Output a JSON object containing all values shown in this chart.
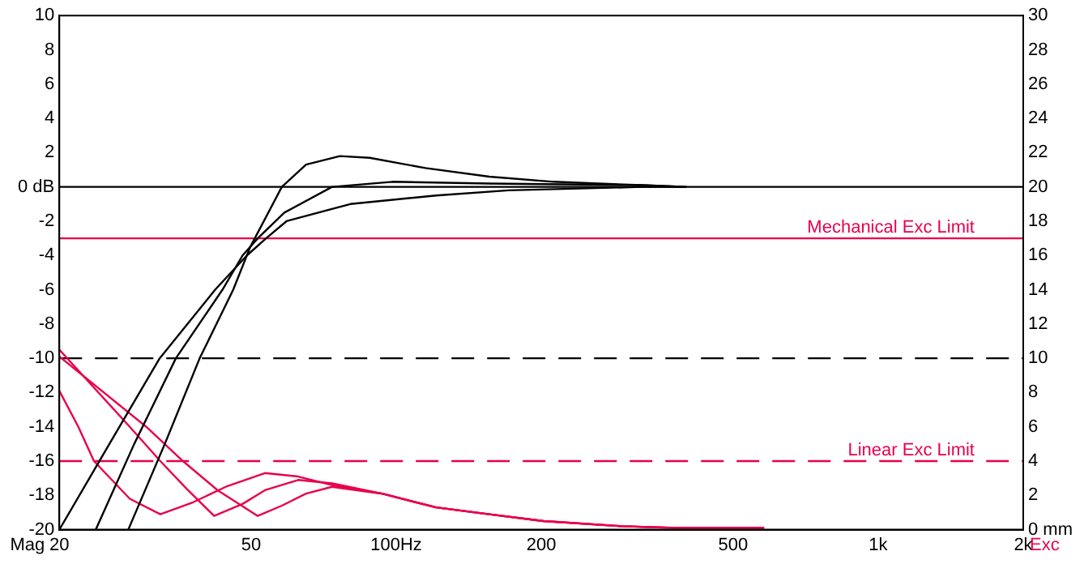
{
  "chart_data": {
    "type": "line",
    "ylabel": "Mag",
    "y2label": "Exc",
    "log": "x",
    "grid": false,
    "legend": false,
    "xlim": [
      20,
      2000
    ],
    "xticks": [
      20,
      50,
      {
        "value": 100,
        "label": "100Hz"
      },
      200,
      500,
      {
        "value": 1000,
        "label": "1k"
      },
      {
        "value": 2000,
        "label": "2k"
      }
    ],
    "ylim": [
      -20,
      10
    ],
    "yticks": [
      -20,
      -18,
      -16,
      -14,
      -12,
      -10,
      -8,
      -6,
      -4,
      -2,
      {
        "value": 0,
        "label": "0 dB"
      },
      2,
      4,
      6,
      8,
      10
    ],
    "y2lim": [
      0,
      30
    ],
    "y2ticks": [
      {
        "value": 0,
        "label": "0 mm"
      },
      2,
      4,
      6,
      8,
      10,
      12,
      14,
      16,
      18,
      20,
      22,
      24,
      26,
      28,
      30
    ],
    "ref_lines": [
      {
        "axis": "y",
        "value": 0,
        "color": "#000000",
        "line_style": "solid"
      },
      {
        "axis": "y",
        "value": -10,
        "color": "#000000",
        "line_style": "dashed"
      },
      {
        "axis": "y2",
        "value": 17,
        "label": "Mechanical Exc Limit",
        "color": "#e8004c",
        "line_style": "solid"
      },
      {
        "axis": "y2",
        "value": 4,
        "label": "Linear Exc Limit",
        "color": "#e8004c",
        "line_style": "dashed"
      }
    ],
    "series": [
      {
        "color": "#000000",
        "x": [
          20,
          25.4,
          32.3,
          42.1,
          49,
          53.7,
          59.2,
          80.3,
          121,
          171,
          323,
          400
        ],
        "values": [
          -20,
          -15,
          -10,
          -6,
          -4,
          -3,
          -2,
          -1,
          -0.5,
          -0.2,
          0,
          0
        ]
      },
      {
        "color": "#000000",
        "x": [
          23.8,
          28.6,
          34.9,
          43.6,
          48,
          51.6,
          58.6,
          73.6,
          98.2,
          156,
          323,
          400
        ],
        "values": [
          -20,
          -15,
          -10,
          -6,
          -4,
          -3,
          -1.5,
          0,
          0.3,
          0.2,
          0.1,
          0
        ]
      },
      {
        "color": "#000000",
        "x": [
          27.8,
          33.1,
          39.1,
          45.9,
          49.8,
          57.9,
          65,
          76.4,
          88.1,
          115,
          156,
          212,
          323,
          400
        ],
        "values": [
          -20,
          -15,
          -10,
          -6,
          -3.5,
          0,
          1.3,
          1.8,
          1.7,
          1.1,
          0.6,
          0.3,
          0.1,
          0
        ]
      },
      {
        "color": "#e8004c",
        "axis": "y2",
        "x": [
          20,
          21.9,
          23.6,
          28,
          32.4,
          37.9,
          44.3,
          53.4,
          62.6,
          73.6,
          93.5,
          121,
          156,
          202,
          294,
          381,
          580
        ],
        "values": [
          8.1,
          6,
          4,
          1.8,
          0.9,
          1.6,
          2.5,
          3.3,
          3.1,
          2.6,
          2.1,
          1.3,
          0.9,
          0.5,
          0.2,
          0.1,
          0.1
        ]
      },
      {
        "color": "#e8004c",
        "axis": "y2",
        "x": [
          20,
          28,
          32.4,
          36.7,
          41.9,
          48,
          53.4,
          62.6,
          73.6,
          93.5,
          121,
          156,
          202,
          294,
          381,
          580
        ],
        "values": [
          10.5,
          6,
          4,
          2.4,
          0.8,
          1.5,
          2.3,
          2.9,
          2.7,
          2.1,
          1.3,
          0.9,
          0.5,
          0.2,
          0.1,
          0.1
        ]
      },
      {
        "color": "#e8004c",
        "axis": "y2",
        "x": [
          20,
          30.3,
          36.1,
          42.6,
          51.6,
          57.9,
          65,
          73.6,
          93.5,
          121,
          156,
          202,
          294,
          381,
          580
        ],
        "values": [
          10.1,
          6,
          4,
          2.3,
          0.8,
          1.4,
          2.1,
          2.5,
          2.1,
          1.3,
          0.9,
          0.5,
          0.2,
          0.1,
          0.1
        ]
      }
    ]
  }
}
